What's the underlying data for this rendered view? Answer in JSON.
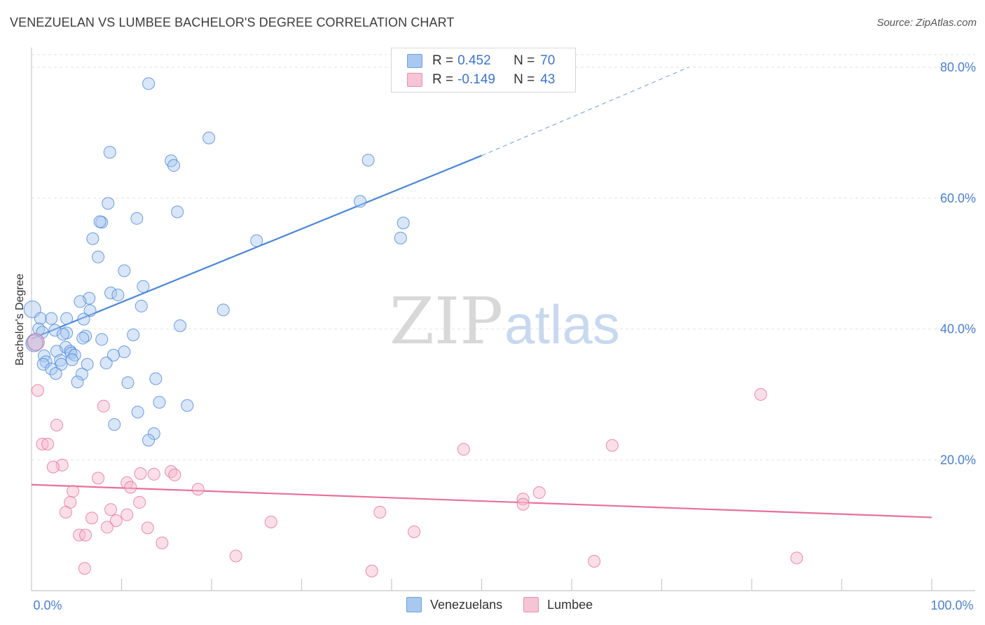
{
  "title": "VENEZUELAN VS LUMBEE BACHELOR'S DEGREE CORRELATION CHART",
  "source": "Source: ZipAtlas.com",
  "watermark": {
    "part1": "ZIP",
    "part2": "atlas"
  },
  "legend": {
    "rows": [
      {
        "r_label": "R =",
        "r_value": "0.452",
        "n_label": "N =",
        "n_value": "70",
        "color": "#a8c8f0"
      },
      {
        "r_label": "R =",
        "r_value": "-0.149",
        "n_label": "N =",
        "n_value": "43",
        "color": "#f5b8cc"
      }
    ]
  },
  "bottom_legend": {
    "items": [
      {
        "label": "Venezuelans",
        "color": "#a8c8f0"
      },
      {
        "label": "Lumbee",
        "color": "#f5b8cc"
      }
    ]
  },
  "chart_data": {
    "type": "scatter",
    "title": "VENEZUELAN VS LUMBEE BACHELOR'S DEGREE CORRELATION CHART",
    "ylabel": "Bachelor's Degree",
    "xlabel": "",
    "xlim": [
      0,
      100
    ],
    "ylim": [
      0,
      80
    ],
    "x_tick_labels": [
      "0.0%",
      "100.0%"
    ],
    "y_ticks": [
      20,
      40,
      60,
      80
    ],
    "y_tick_labels": [
      "20.0%",
      "40.0%",
      "60.0%",
      "80.0%"
    ],
    "series": [
      {
        "name": "Venezuelans",
        "color": "#4a86d8",
        "fill": "rgba(168,200,240,0.45)",
        "trend": {
          "x0": 0,
          "y0": 38.5,
          "x1": 50,
          "y1": 66.5,
          "x_dash_end": 73,
          "y_dash_end": 80
        },
        "points": [
          [
            13,
            77.5
          ],
          [
            19.7,
            69.2
          ],
          [
            8.7,
            67.0
          ],
          [
            15.5,
            65.7
          ],
          [
            15.8,
            65.0
          ],
          [
            37.4,
            65.8
          ],
          [
            8.5,
            59.2
          ],
          [
            36.5,
            59.5
          ],
          [
            16.2,
            57.9
          ],
          [
            11.7,
            56.9
          ],
          [
            7.8,
            56.3
          ],
          [
            7.6,
            56.4
          ],
          [
            41.3,
            56.2
          ],
          [
            6.8,
            53.8
          ],
          [
            41.0,
            53.9
          ],
          [
            25.0,
            53.5
          ],
          [
            7.4,
            51.0
          ],
          [
            10.3,
            48.9
          ],
          [
            12.4,
            46.5
          ],
          [
            8.8,
            45.5
          ],
          [
            9.6,
            45.2
          ],
          [
            6.4,
            44.7
          ],
          [
            5.4,
            44.2
          ],
          [
            12.2,
            43.5
          ],
          [
            21.3,
            42.9
          ],
          [
            6.5,
            42.8
          ],
          [
            0.1,
            43.0
          ],
          [
            1.0,
            41.6
          ],
          [
            2.2,
            41.6
          ],
          [
            3.9,
            41.6
          ],
          [
            5.8,
            41.5
          ],
          [
            16.5,
            40.5
          ],
          [
            0.8,
            40.0
          ],
          [
            1.2,
            39.5
          ],
          [
            2.6,
            39.8
          ],
          [
            3.9,
            39.4
          ],
          [
            3.5,
            39.2
          ],
          [
            6.0,
            38.9
          ],
          [
            5.7,
            38.6
          ],
          [
            11.3,
            39.1
          ],
          [
            7.8,
            38.4
          ],
          [
            0.4,
            38.0
          ],
          [
            0.3,
            37.8
          ],
          [
            3.8,
            37.2
          ],
          [
            2.8,
            36.6
          ],
          [
            4.3,
            36.6
          ],
          [
            4.4,
            36.3
          ],
          [
            10.3,
            36.5
          ],
          [
            1.4,
            35.9
          ],
          [
            4.8,
            36.0
          ],
          [
            9.1,
            36.0
          ],
          [
            1.6,
            35.0
          ],
          [
            3.2,
            35.2
          ],
          [
            4.5,
            35.3
          ],
          [
            1.3,
            34.6
          ],
          [
            3.3,
            34.6
          ],
          [
            8.3,
            34.8
          ],
          [
            6.2,
            34.6
          ],
          [
            2.2,
            33.9
          ],
          [
            2.7,
            33.2
          ],
          [
            5.6,
            33.1
          ],
          [
            13.8,
            32.4
          ],
          [
            5.1,
            31.9
          ],
          [
            10.7,
            31.8
          ],
          [
            14.2,
            28.8
          ],
          [
            17.3,
            28.3
          ],
          [
            11.8,
            27.3
          ],
          [
            9.2,
            25.4
          ],
          [
            13.6,
            24.0
          ],
          [
            13.0,
            23.0
          ]
        ]
      },
      {
        "name": "Lumbee",
        "color": "#e8709a",
        "fill": "rgba(245,184,204,0.45)",
        "trend": {
          "x0": 0,
          "y0": 16.2,
          "x1": 100,
          "y1": 11.2
        },
        "points": [
          [
            0.5,
            38.0
          ],
          [
            0.7,
            30.6
          ],
          [
            8.0,
            28.2
          ],
          [
            81.0,
            30.0
          ],
          [
            2.8,
            25.3
          ],
          [
            1.2,
            22.4
          ],
          [
            1.8,
            22.4
          ],
          [
            48.0,
            21.6
          ],
          [
            64.5,
            22.2
          ],
          [
            3.4,
            19.2
          ],
          [
            2.4,
            18.9
          ],
          [
            15.5,
            18.2
          ],
          [
            12.1,
            17.9
          ],
          [
            15.9,
            17.7
          ],
          [
            13.6,
            17.8
          ],
          [
            7.4,
            17.2
          ],
          [
            10.6,
            16.5
          ],
          [
            11.0,
            15.8
          ],
          [
            18.5,
            15.5
          ],
          [
            4.6,
            15.2
          ],
          [
            56.4,
            15.0
          ],
          [
            54.6,
            14.0
          ],
          [
            54.6,
            13.2
          ],
          [
            4.3,
            13.5
          ],
          [
            12.0,
            13.5
          ],
          [
            8.8,
            12.4
          ],
          [
            3.8,
            12.0
          ],
          [
            38.7,
            12.0
          ],
          [
            10.6,
            11.6
          ],
          [
            6.7,
            11.1
          ],
          [
            26.6,
            10.5
          ],
          [
            9.4,
            10.7
          ],
          [
            8.4,
            9.7
          ],
          [
            12.9,
            9.6
          ],
          [
            42.5,
            9.0
          ],
          [
            5.3,
            8.5
          ],
          [
            6.0,
            8.5
          ],
          [
            14.5,
            7.3
          ],
          [
            22.7,
            5.3
          ],
          [
            62.5,
            4.5
          ],
          [
            85.0,
            5.0
          ],
          [
            5.9,
            3.4
          ],
          [
            37.8,
            3.0
          ]
        ]
      }
    ]
  }
}
